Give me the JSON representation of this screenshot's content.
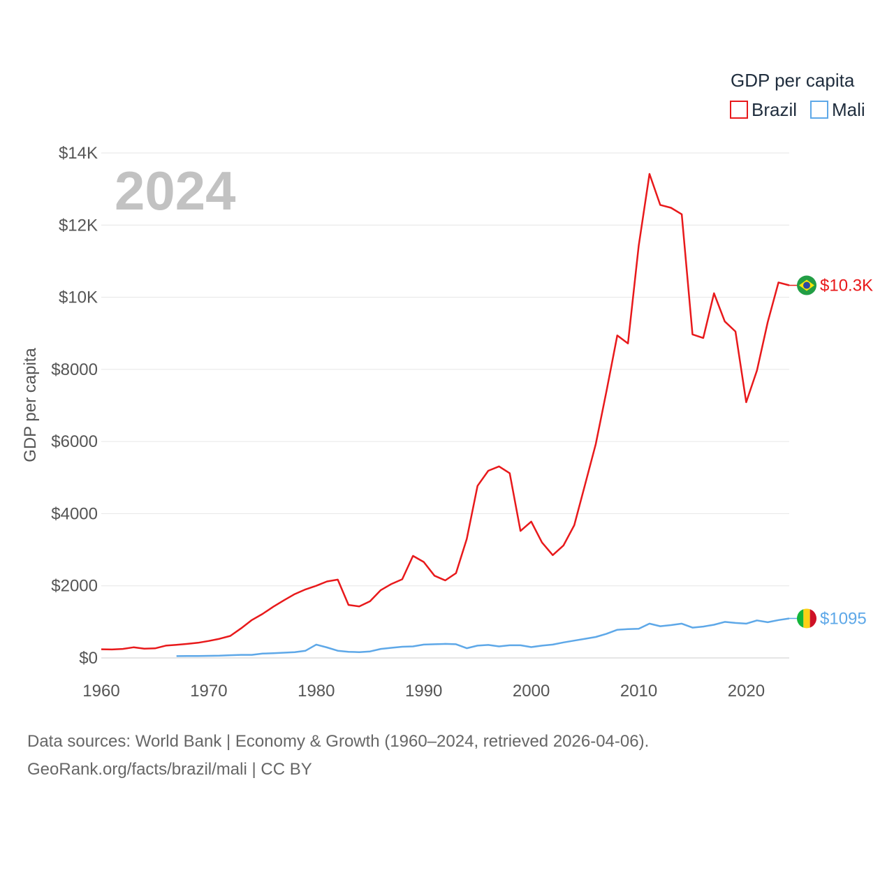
{
  "footer": {
    "line1": "Data sources: World Bank | Economy & Growth (1960–2024, retrieved 2026-04-06).",
    "line2": "GeoRank.org/facts/brazil/mali | CC BY"
  },
  "chart_data": {
    "type": "line",
    "title": "GDP per capita",
    "year_label": "2024",
    "xlabel": "",
    "ylabel": "GDP per capita",
    "xlim": [
      1960,
      2024
    ],
    "ylim": [
      0,
      14000
    ],
    "x_ticks": [
      1960,
      1970,
      1980,
      1990,
      2000,
      2010,
      2020
    ],
    "y_ticks": [
      {
        "value": 0,
        "label": "$0"
      },
      {
        "value": 2000,
        "label": "$2000"
      },
      {
        "value": 4000,
        "label": "$4000"
      },
      {
        "value": 6000,
        "label": "$6000"
      },
      {
        "value": 8000,
        "label": "$8000"
      },
      {
        "value": 10000,
        "label": "$10K"
      },
      {
        "value": 12000,
        "label": "$12K"
      },
      {
        "value": 14000,
        "label": "$14K"
      }
    ],
    "grid": true,
    "legend_position": "top-right",
    "series": [
      {
        "name": "Brazil",
        "color": "#e8191b",
        "end_label": "$10.3K",
        "flag": "brazil-flag",
        "x": [
          1960,
          1961,
          1962,
          1963,
          1964,
          1965,
          1966,
          1967,
          1968,
          1969,
          1970,
          1971,
          1972,
          1973,
          1974,
          1975,
          1976,
          1977,
          1978,
          1979,
          1980,
          1981,
          1982,
          1983,
          1984,
          1985,
          1986,
          1987,
          1988,
          1989,
          1990,
          1991,
          1992,
          1993,
          1994,
          1995,
          1996,
          1997,
          1998,
          1999,
          2000,
          2001,
          2002,
          2003,
          2004,
          2005,
          2006,
          2007,
          2008,
          2009,
          2010,
          2011,
          2012,
          2013,
          2014,
          2015,
          2016,
          2017,
          2018,
          2019,
          2020,
          2021,
          2022,
          2023,
          2024
        ],
        "y": [
          240,
          235,
          250,
          295,
          255,
          265,
          340,
          365,
          390,
          420,
          470,
          530,
          610,
          820,
          1050,
          1220,
          1420,
          1600,
          1770,
          1900,
          2000,
          2120,
          2170,
          1470,
          1430,
          1570,
          1880,
          2050,
          2180,
          2830,
          2660,
          2280,
          2150,
          2350,
          3300,
          4770,
          5190,
          5310,
          5120,
          3520,
          3780,
          3200,
          2850,
          3120,
          3680,
          4800,
          5930,
          7400,
          8940,
          8720,
          11430,
          13420,
          12560,
          12480,
          12300,
          8970,
          8870,
          10110,
          9330,
          9050,
          7090,
          7970,
          9310,
          10410,
          10330
        ]
      },
      {
        "name": "Mali",
        "color": "#5ea8e8",
        "end_label": "$1095",
        "flag": "mali-flag",
        "x": [
          1967,
          1968,
          1969,
          1970,
          1971,
          1972,
          1973,
          1974,
          1975,
          1976,
          1977,
          1978,
          1979,
          1980,
          1981,
          1982,
          1983,
          1984,
          1985,
          1986,
          1987,
          1988,
          1989,
          1990,
          1991,
          1992,
          1993,
          1994,
          1995,
          1996,
          1997,
          1998,
          1999,
          2000,
          2001,
          2002,
          2003,
          2004,
          2005,
          2006,
          2007,
          2008,
          2009,
          2010,
          2011,
          2012,
          2013,
          2014,
          2015,
          2016,
          2017,
          2018,
          2019,
          2020,
          2021,
          2022,
          2023,
          2024
        ],
        "y": [
          50,
          55,
          55,
          58,
          62,
          75,
          85,
          85,
          120,
          130,
          145,
          160,
          200,
          370,
          290,
          200,
          170,
          160,
          180,
          250,
          280,
          310,
          320,
          370,
          380,
          390,
          380,
          270,
          340,
          360,
          320,
          350,
          350,
          300,
          340,
          370,
          430,
          480,
          530,
          580,
          670,
          780,
          800,
          810,
          950,
          880,
          910,
          950,
          840,
          870,
          920,
          1000,
          970,
          950,
          1040,
          990,
          1050,
          1095
        ]
      }
    ]
  }
}
